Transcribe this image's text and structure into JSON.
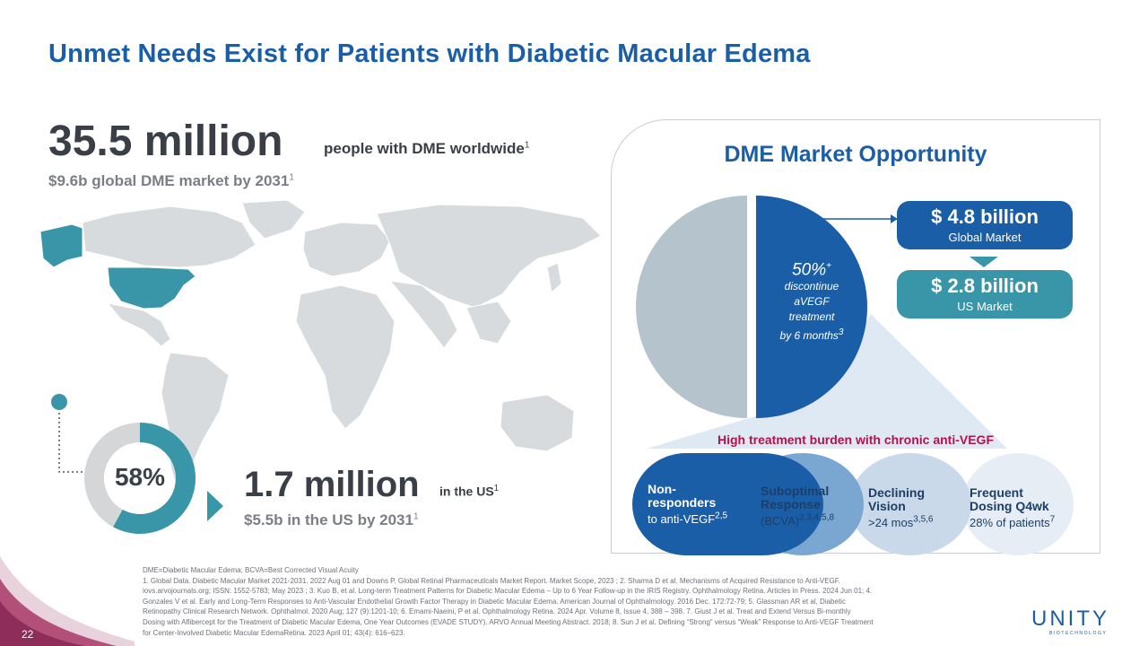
{
  "title": "Unmet Needs Exist for Patients with Diabetic Macular Edema",
  "worldwide": {
    "value": "35.5 million",
    "label": "people with DME worldwide",
    "label_sup": "1",
    "market": "$9.6b global DME market by 2031",
    "market_sup": "1"
  },
  "us": {
    "donut_label": "58%",
    "donut_fraction": 0.58,
    "value": "1.7 million",
    "label": "in the US",
    "label_sup": "1",
    "market": "$5.5b in the US by 2031",
    "market_sup": "1"
  },
  "opportunity": {
    "title": "DME Market Opportunity",
    "global": {
      "amount": "$ 4.8 billion",
      "label": "Global Market"
    },
    "us": {
      "amount": "$ 2.8 billion",
      "label": "US Market"
    },
    "pie": {
      "pct": "50%",
      "pct_sup": "+",
      "text_lines": [
        "discontinue",
        "aVEGF",
        "treatment",
        "by 6 months"
      ],
      "text_sup": "3",
      "fraction": 0.5
    },
    "burden_title": "High treatment burden with chronic anti-VEGF",
    "segments": [
      {
        "line1": "Non-",
        "line2": "responders",
        "detail": "to anti-VEGF",
        "sup": "2,5"
      },
      {
        "line1": "Suboptimal",
        "line2": "Response",
        "detail": "(BCVA)",
        "sup": "2,3,4,5,8"
      },
      {
        "line1": "Declining",
        "line2": "Vision",
        "detail": ">24 mos",
        "sup": "3,5,6"
      },
      {
        "line1": "Frequent",
        "line2": "Dosing Q4wk",
        "detail": "28% of patients",
        "sup": "7"
      }
    ]
  },
  "colors": {
    "brand_blue": "#1b5ea8",
    "teal": "#3896a8",
    "gray_pie": "#b5c3cc",
    "map_gray": "#d8dbde",
    "burden_red": "#b3124d"
  },
  "references": [
    "DME=Diabetic Macular Edema; BCVA=Best Corrected Visual Acuity",
    "1. Global Data. Diabetic Macular Market 2021-2031. 2022 Aug 01 and Downs P. Global Retinal Pharmaceuticals Market Report. Market Scope, 2023 ; 2. Sharma D et al. Mechanisms of Acquired Resistance to Anti-VEGF.",
    "iovs.arvojournals.org; ISSN: 1552-5783; May 2023 ; 3. Kuo B, et al. Long-term Treatment Patterns for Diabetic Macular Edema – Up to 6 Year Follow-up in the IRIS Registry. Ophthalmology Retina. Articles in Press. 2024 Jun 01; 4.",
    "Gonzales V et al. Early and Long-Term Responses to Anti-Vascular Endothelial Growth Factor Therapy in Diabetic Macular Edema. American Journal of Ophthalmology. 2016 Dec. 172:72-79; 5. Glassman AR et al, Diabetic",
    "Retinopathy Clinical Research Network. Ophthalmol. 2020 Aug; 127 (9):1201-10; 6. Emami-Naeini, P et al. Ophthalmology Retina. 2024 Apr. Volume 8, Issue 4, 388 – 398. 7. Giust J et al. Treat and Extend Versus Bi-monthly",
    "Dosing with Aflibercept for the Treatment of Diabetic Macular Edema, One Year Outcomes (EVADE STUDY). ARVO Annual Meeting Abstract. 2018; 8. Sun J et al. Defining “Strong” versus “Weak” Response to Anti-VEGF Treatment",
    "for Center-Involved Diabetic Macular EdemaRetina. 2023 April 01; 43(4): 616–623."
  ],
  "page_number": "22",
  "logo": {
    "name": "UNITY",
    "sub": "BIOTECHNOLOGY"
  }
}
